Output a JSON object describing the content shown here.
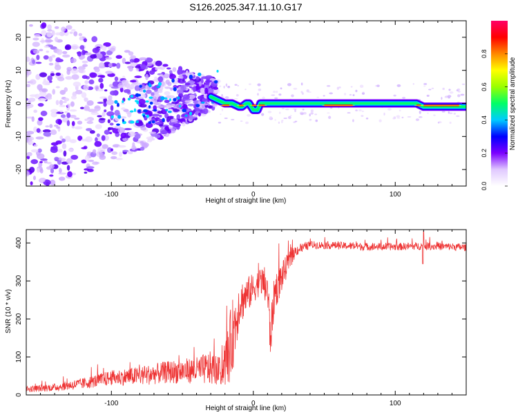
{
  "title": "S126.2025.347.11.10.G17",
  "chart_data": [
    {
      "type": "heatmap",
      "title": "",
      "xlabel": "Height of straight line (km)",
      "ylabel": "Frequency (Hz)",
      "xlim": [
        -160,
        150
      ],
      "ylim": [
        -25,
        25
      ],
      "xticks": [
        -100,
        0,
        100
      ],
      "yticks": [
        -20,
        -10,
        0,
        10,
        20
      ],
      "colorbar": {
        "label": "Normalized spectral amplitude",
        "range": [
          0,
          1
        ],
        "ticks": [
          "0.0",
          "0.2",
          "0.4",
          "0.6",
          "0.8"
        ],
        "colors": [
          "#ffffff",
          "#e0c8ff",
          "#7b00ff",
          "#0000ff",
          "#00ccff",
          "#00ff66",
          "#99ff00",
          "#ffff00",
          "#ff8800",
          "#ff0000",
          "#ff0066"
        ]
      },
      "ridge": {
        "x": [
          -30,
          -25,
          -20,
          -15,
          -10,
          -8,
          -5,
          -3,
          0,
          3,
          5,
          10,
          20,
          40,
          60,
          80,
          100,
          115,
          120,
          130,
          140,
          150
        ],
        "freq": [
          2,
          1,
          0,
          0,
          -1,
          -1,
          0,
          0,
          -2,
          -2,
          0,
          0,
          0,
          0,
          0,
          0,
          0,
          0,
          -1,
          -1,
          -1,
          -1
        ]
      }
    },
    {
      "type": "line",
      "title": "",
      "xlabel": "Height of straight line (km)",
      "ylabel": "SNR (10 * v/v)",
      "xlim": [
        -160,
        150
      ],
      "ylim": [
        0,
        435
      ],
      "xticks": [
        -100,
        0,
        100
      ],
      "yticks": [
        0,
        100,
        200,
        300,
        400
      ],
      "color": "#ee3333",
      "envelope": {
        "x": [
          -160,
          -140,
          -120,
          -100,
          -80,
          -60,
          -40,
          -30,
          -22,
          -18,
          -15,
          -12,
          -10,
          -5,
          0,
          5,
          10,
          12,
          15,
          20,
          25,
          30,
          40,
          60,
          80,
          100,
          120,
          140,
          150
        ],
        "center": [
          15,
          20,
          30,
          45,
          50,
          60,
          65,
          70,
          60,
          100,
          150,
          200,
          240,
          260,
          280,
          300,
          280,
          150,
          270,
          310,
          350,
          380,
          395,
          393,
          390,
          390,
          392,
          390,
          388
        ],
        "spread": [
          8,
          10,
          15,
          20,
          25,
          30,
          35,
          45,
          35,
          80,
          100,
          80,
          60,
          50,
          40,
          35,
          60,
          60,
          50,
          40,
          25,
          15,
          10,
          10,
          10,
          10,
          10,
          10,
          10
        ]
      }
    }
  ]
}
